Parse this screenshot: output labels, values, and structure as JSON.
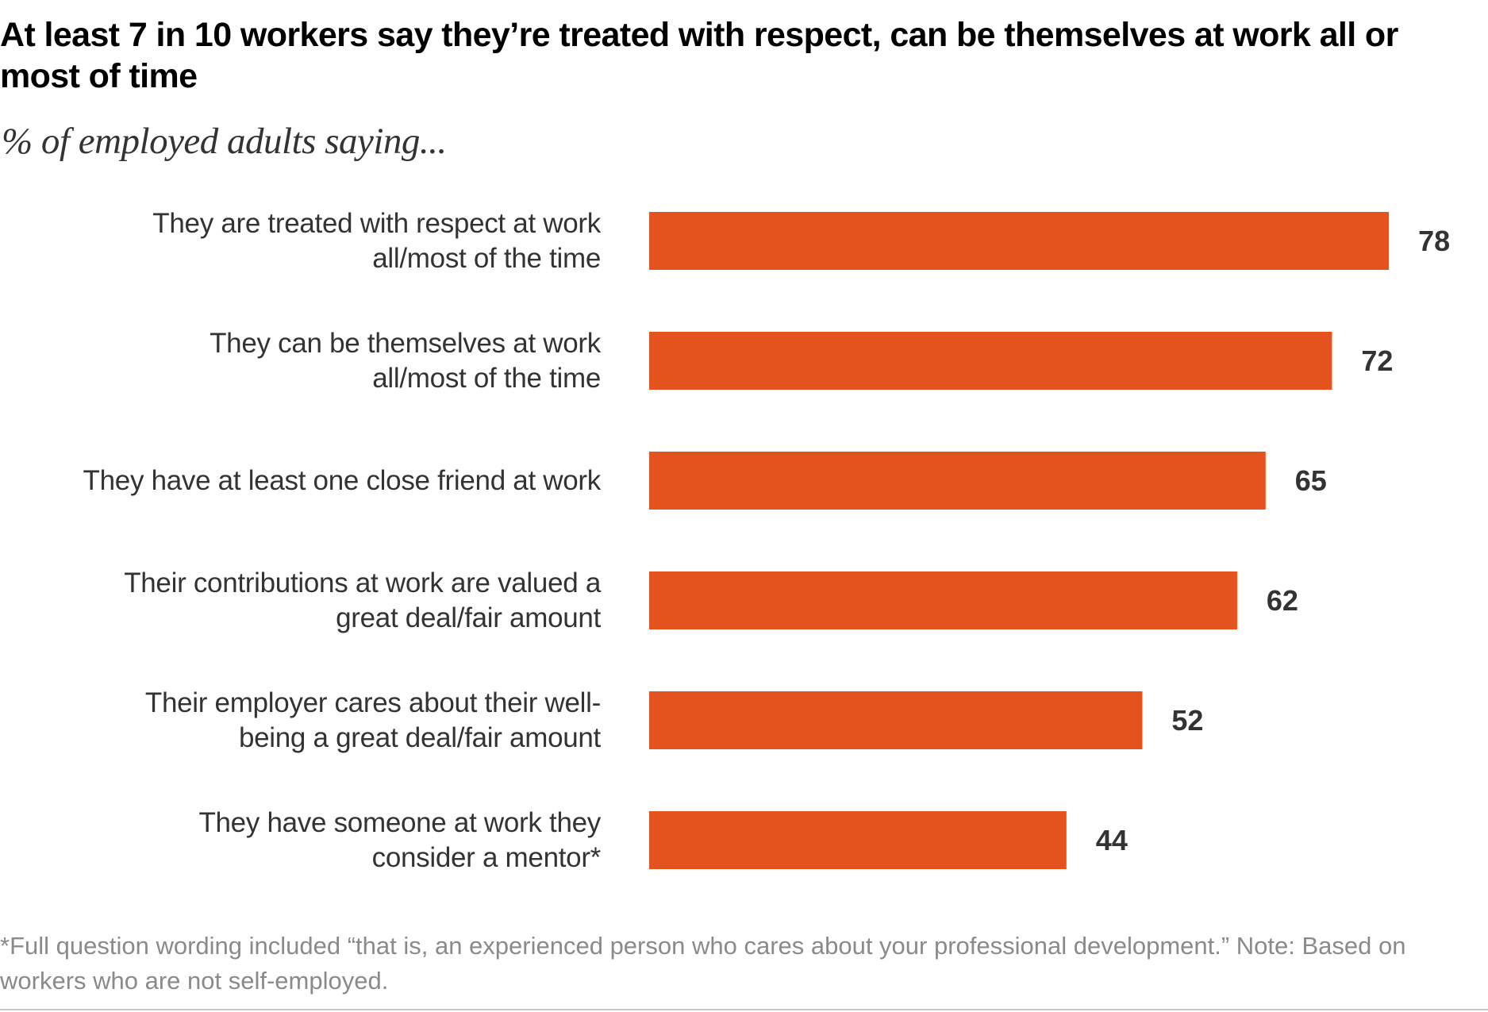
{
  "title": "At least 7 in 10 workers say they’re treated with respect, can be themselves at work all or most of time",
  "subtitle": "% of employed adults saying...",
  "footnote": "*Full question wording included “that is, an experienced person who cares about your professional development.” Note: Based on workers who are not self-employed.",
  "colors": {
    "bar": "#e4521e",
    "label": "#333333",
    "footnote": "#8a8a8a"
  },
  "chart_data": {
    "type": "bar",
    "orientation": "horizontal",
    "categories": [
      [
        "They are treated with respect at work",
        "all/most of the time"
      ],
      [
        "They can be themselves at work",
        "all/most of the time"
      ],
      [
        "They have at least one close friend at work"
      ],
      [
        "Their contributions at work are valued a",
        "great deal/fair amount"
      ],
      [
        "Their employer cares about their well-",
        "being a great deal/fair amount"
      ],
      [
        "They have someone at work they",
        "consider a mentor*"
      ]
    ],
    "values": [
      78,
      72,
      65,
      62,
      52,
      44
    ],
    "title": "At least 7 in 10 workers say they’re treated with respect, can be themselves at work all or most of time",
    "subtitle": "% of employed adults saying...",
    "xlim": [
      0,
      100
    ],
    "grid": false,
    "legend": "none"
  }
}
